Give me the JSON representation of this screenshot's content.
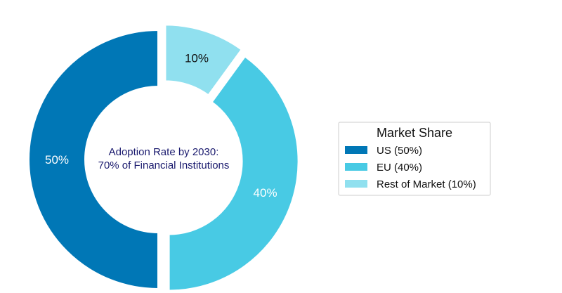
{
  "chart_data": {
    "type": "donut",
    "categories": [
      "US",
      "EU",
      "Rest of Market"
    ],
    "values": [
      50,
      40,
      10
    ],
    "slice_labels": [
      "50%",
      "40%",
      "10%"
    ],
    "colors": [
      "#0077b6",
      "#48cae4",
      "#90e0ef"
    ],
    "label_colors": [
      "#ffffff",
      "#ffffff",
      "#111111"
    ],
    "center_text": [
      "Adoption Rate by 2030:",
      "70% of Financial Institutions"
    ],
    "legend": {
      "title": "Market Share",
      "entries": [
        "US (50%)",
        "EU (40%)",
        "Rest of Market (10%)"
      ],
      "placement": "right"
    }
  }
}
